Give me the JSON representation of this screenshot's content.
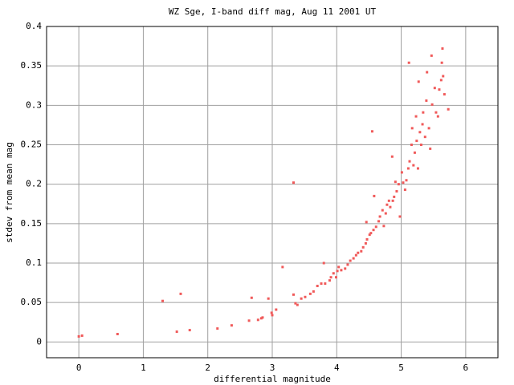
{
  "chart_data": {
    "type": "scatter",
    "title": "WZ Sge, I-band diff mag, Aug 11 2001 UT",
    "x_label": "differential magnitude",
    "y_label": "stdev from mean mag",
    "color": "#f05a5a",
    "grid": true,
    "xlim": [
      -0.5,
      6.5
    ],
    "xticks": [
      0,
      1,
      2,
      3,
      4,
      5,
      6
    ],
    "ylim": [
      -0.02,
      0.4
    ],
    "yticks": [
      0,
      0.05,
      0.1,
      0.15,
      0.2,
      0.25,
      0.3,
      0.35,
      0.4
    ],
    "x": [
      0.0,
      0.05,
      0.6,
      1.3,
      1.52,
      1.58,
      1.72,
      2.15,
      2.37,
      2.68,
      2.64,
      2.78,
      2.83,
      2.85,
      2.94,
      2.99,
      3.0,
      3.06,
      3.16,
      3.33,
      3.33,
      3.36,
      3.39,
      3.45,
      3.51,
      3.59,
      3.64,
      3.7,
      3.76,
      3.8,
      3.82,
      3.89,
      3.91,
      3.95,
      3.99,
      4.01,
      4.03,
      4.07,
      4.13,
      4.17,
      4.21,
      4.26,
      4.3,
      4.33,
      4.38,
      4.41,
      4.45,
      4.47,
      4.46,
      4.51,
      4.53,
      4.55,
      4.57,
      4.58,
      4.61,
      4.65,
      4.67,
      4.71,
      4.73,
      4.76,
      4.78,
      4.81,
      4.83,
      4.86,
      4.87,
      4.89,
      4.91,
      4.93,
      4.96,
      4.98,
      5.01,
      5.03,
      5.06,
      5.08,
      5.11,
      5.12,
      5.13,
      5.16,
      5.17,
      5.19,
      5.21,
      5.23,
      5.24,
      5.26,
      5.27,
      5.29,
      5.31,
      5.33,
      5.34,
      5.37,
      5.39,
      5.4,
      5.43,
      5.45,
      5.47,
      5.48,
      5.52,
      5.54,
      5.57,
      5.59,
      5.62,
      5.63,
      5.64,
      5.65,
      5.67,
      5.73
    ],
    "values": [
      0.007,
      0.008,
      0.01,
      0.052,
      0.013,
      0.061,
      0.015,
      0.017,
      0.021,
      0.056,
      0.027,
      0.028,
      0.03,
      0.031,
      0.055,
      0.037,
      0.034,
      0.041,
      0.095,
      0.202,
      0.06,
      0.049,
      0.047,
      0.055,
      0.057,
      0.061,
      0.064,
      0.071,
      0.074,
      0.1,
      0.074,
      0.078,
      0.082,
      0.087,
      0.082,
      0.09,
      0.095,
      0.091,
      0.093,
      0.098,
      0.103,
      0.106,
      0.11,
      0.113,
      0.115,
      0.12,
      0.125,
      0.13,
      0.152,
      0.136,
      0.138,
      0.267,
      0.142,
      0.185,
      0.146,
      0.153,
      0.159,
      0.167,
      0.147,
      0.163,
      0.174,
      0.179,
      0.171,
      0.235,
      0.179,
      0.184,
      0.203,
      0.191,
      0.2,
      0.159,
      0.215,
      0.202,
      0.193,
      0.205,
      0.22,
      0.354,
      0.229,
      0.25,
      0.271,
      0.224,
      0.24,
      0.286,
      0.255,
      0.22,
      0.33,
      0.266,
      0.25,
      0.276,
      0.291,
      0.26,
      0.306,
      0.342,
      0.271,
      0.245,
      0.363,
      0.301,
      0.322,
      0.291,
      0.286,
      0.32,
      0.332,
      0.354,
      0.372,
      0.337,
      0.314,
      0.295
    ]
  }
}
